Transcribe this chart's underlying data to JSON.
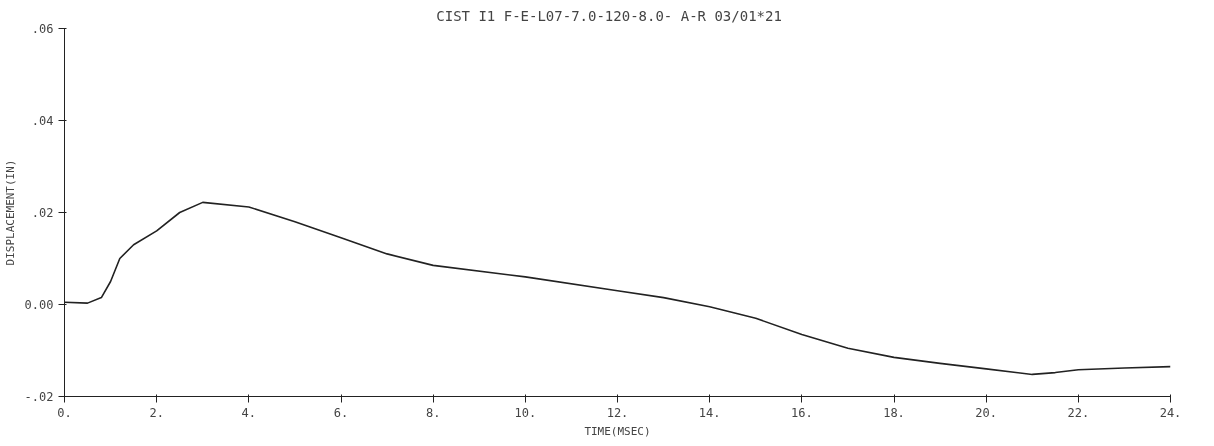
{
  "chart_data": {
    "type": "line",
    "title": "CIST I1  F-E-L07-7.0-120-8.0- A-R  03/01*21",
    "xlabel": "TIME(MSEC)",
    "ylabel": "DISPLACEMENT(IN)",
    "xlim": [
      0,
      24
    ],
    "ylim": [
      -0.02,
      0.06
    ],
    "xticks": [
      {
        "value": 0,
        "label": "0."
      },
      {
        "value": 2,
        "label": "2."
      },
      {
        "value": 4,
        "label": "4."
      },
      {
        "value": 6,
        "label": "6."
      },
      {
        "value": 8,
        "label": "8."
      },
      {
        "value": 10,
        "label": "10."
      },
      {
        "value": 12,
        "label": "12."
      },
      {
        "value": 14,
        "label": "14."
      },
      {
        "value": 16,
        "label": "16."
      },
      {
        "value": 18,
        "label": "18."
      },
      {
        "value": 20,
        "label": "20."
      },
      {
        "value": 22,
        "label": "22."
      },
      {
        "value": 24,
        "label": "24."
      }
    ],
    "yticks": [
      {
        "value": -0.02,
        "label": "-.02"
      },
      {
        "value": 0,
        "label": "0.00"
      },
      {
        "value": 0.02,
        "label": ".02"
      },
      {
        "value": 0.04,
        "label": ".04"
      },
      {
        "value": 0.06,
        "label": ".06"
      }
    ],
    "grid": false,
    "marker": "none",
    "line_style": "solid",
    "series": [
      {
        "color": "#222222",
        "x": [
          0,
          0.5,
          0.8,
          1.0,
          1.2,
          1.5,
          2.0,
          2.5,
          3.0,
          4.0,
          5.0,
          6.0,
          7.0,
          8.0,
          10.0,
          12.0,
          13.0,
          14.0,
          15.0,
          16.0,
          17.0,
          18.0,
          19.0,
          20.0,
          21.0,
          21.5,
          22.0,
          23.0,
          24.0
        ],
        "values": [
          0.0005,
          0.0003,
          0.0015,
          0.005,
          0.01,
          0.013,
          0.016,
          0.02,
          0.0222,
          0.0212,
          0.018,
          0.0145,
          0.011,
          0.0085,
          0.006,
          0.003,
          0.0015,
          -0.0005,
          -0.003,
          -0.0065,
          -0.0095,
          -0.0115,
          -0.0128,
          -0.014,
          -0.0152,
          -0.0148,
          -0.0142,
          -0.0138,
          -0.0135
        ]
      }
    ]
  }
}
